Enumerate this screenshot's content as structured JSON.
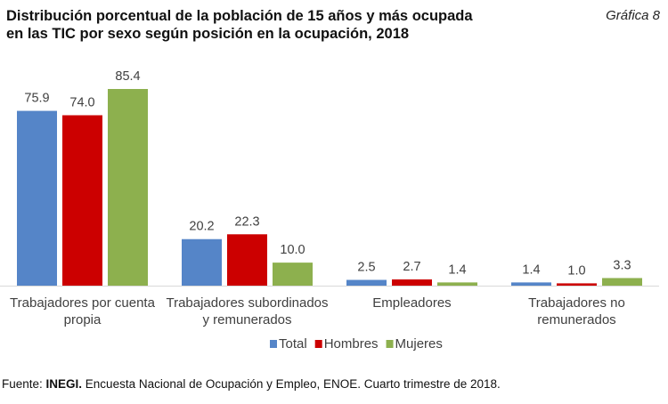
{
  "header": {
    "title_line1": "Distribución porcentual de la población de 15 años y más ocupada",
    "title_line2": "en las TIC por sexo según posición en la ocupación, 2018",
    "chart_number": "Gráfica 8"
  },
  "source": {
    "prefix": "Fuente: ",
    "org": "INEGI.",
    "text": " Encuesta Nacional de Ocupación y Empleo, ENOE. Cuarto trimestre de 2018."
  },
  "chart_data": {
    "type": "bar",
    "title": "Distribución porcentual de la población de 15 años y más ocupada en las TIC por sexo según posición en la ocupación, 2018",
    "xlabel": "",
    "ylabel": "",
    "ylim": [
      0,
      85.4
    ],
    "grid": false,
    "legend_position": "bottom",
    "categories": [
      [
        "Trabajadores por cuenta",
        "propia"
      ],
      [
        "Trabajadores subordinados",
        "y remunerados"
      ],
      [
        "Empleadores"
      ],
      [
        "Trabajadores no",
        "remunerados"
      ]
    ],
    "series": [
      {
        "name": "Total",
        "color": "#5585c8",
        "values": [
          75.9,
          20.2,
          2.5,
          1.4
        ],
        "labels": [
          "75.9",
          "20.2",
          "2.5",
          "1.4"
        ]
      },
      {
        "name": "Hombres",
        "color": "#cc0000",
        "values": [
          74.0,
          22.3,
          2.7,
          1.0
        ],
        "labels": [
          "74.0",
          "22.3",
          "2.7",
          "1.0"
        ]
      },
      {
        "name": "Mujeres",
        "color": "#8db04e",
        "values": [
          85.4,
          10.0,
          1.4,
          3.3
        ],
        "labels": [
          "85.4",
          "10.0",
          "1.4",
          "3.3"
        ]
      }
    ]
  }
}
